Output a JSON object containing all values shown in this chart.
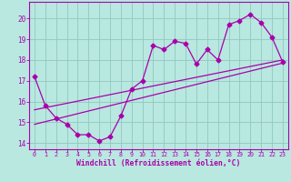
{
  "bg_color": "#b8e8e0",
  "line_color": "#aa00aa",
  "grid_color": "#90c8c0",
  "xlabel": "Windchill (Refroidissement éolien,°C)",
  "xlabel_color": "#aa00aa",
  "tick_color": "#aa00aa",
  "spine_color": "#aa00aa",
  "xlim": [
    -0.5,
    23.5
  ],
  "ylim": [
    13.7,
    20.8
  ],
  "yticks": [
    14,
    15,
    16,
    17,
    18,
    19,
    20
  ],
  "xticks": [
    0,
    1,
    2,
    3,
    4,
    5,
    6,
    7,
    8,
    9,
    10,
    11,
    12,
    13,
    14,
    15,
    16,
    17,
    18,
    19,
    20,
    21,
    22,
    23
  ],
  "series1_x": [
    0,
    1,
    2,
    3,
    4,
    5,
    6,
    7,
    8,
    9,
    10,
    11,
    12,
    13,
    14,
    15,
    16,
    17,
    18,
    19,
    20,
    21,
    22,
    23
  ],
  "series1_y": [
    17.2,
    15.8,
    15.2,
    14.9,
    14.4,
    14.4,
    14.1,
    14.3,
    15.3,
    16.6,
    17.0,
    18.7,
    18.5,
    18.9,
    18.8,
    17.8,
    18.5,
    18.0,
    19.7,
    19.9,
    20.2,
    19.8,
    19.1,
    17.9
  ],
  "trend1_x": [
    0,
    23
  ],
  "trend1_y": [
    14.9,
    17.85
  ],
  "trend2_x": [
    0,
    23
  ],
  "trend2_y": [
    15.6,
    18.0
  ],
  "marker": "D",
  "markersize": 2.5,
  "linewidth": 0.9,
  "trend_linewidth": 0.9
}
